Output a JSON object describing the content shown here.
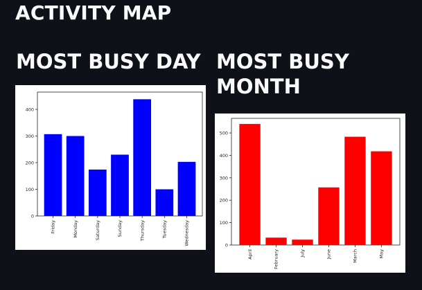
{
  "header": {
    "title": "ACTIVITY MAP"
  },
  "sections": {
    "day_title": "MOST BUSY DAY",
    "month_title": "MOST BUSY MONTH"
  },
  "colors": {
    "background": "#0e1117",
    "day_bars": "#0000ff",
    "month_bars": "#ff0000"
  },
  "chart_data": [
    {
      "type": "bar",
      "title": "",
      "xlabel": "",
      "ylabel": "",
      "categories": [
        "Friday",
        "Monday",
        "Saturday",
        "Sunday",
        "Thursday",
        "Tuesday",
        "Wednesday"
      ],
      "values": [
        307,
        300,
        174,
        230,
        438,
        100,
        203
      ],
      "ylim": [
        0,
        465
      ],
      "yticks": [
        0,
        100,
        200,
        300,
        400
      ],
      "grid": false,
      "color": "#0000ff"
    },
    {
      "type": "bar",
      "title": "",
      "xlabel": "",
      "ylabel": "",
      "categories": [
        "April",
        "February",
        "July",
        "June",
        "March",
        "May"
      ],
      "values": [
        540,
        33,
        24,
        257,
        483,
        418
      ],
      "ylim": [
        0,
        565
      ],
      "yticks": [
        0,
        100,
        200,
        300,
        400,
        500
      ],
      "grid": false,
      "color": "#ff0000"
    }
  ]
}
